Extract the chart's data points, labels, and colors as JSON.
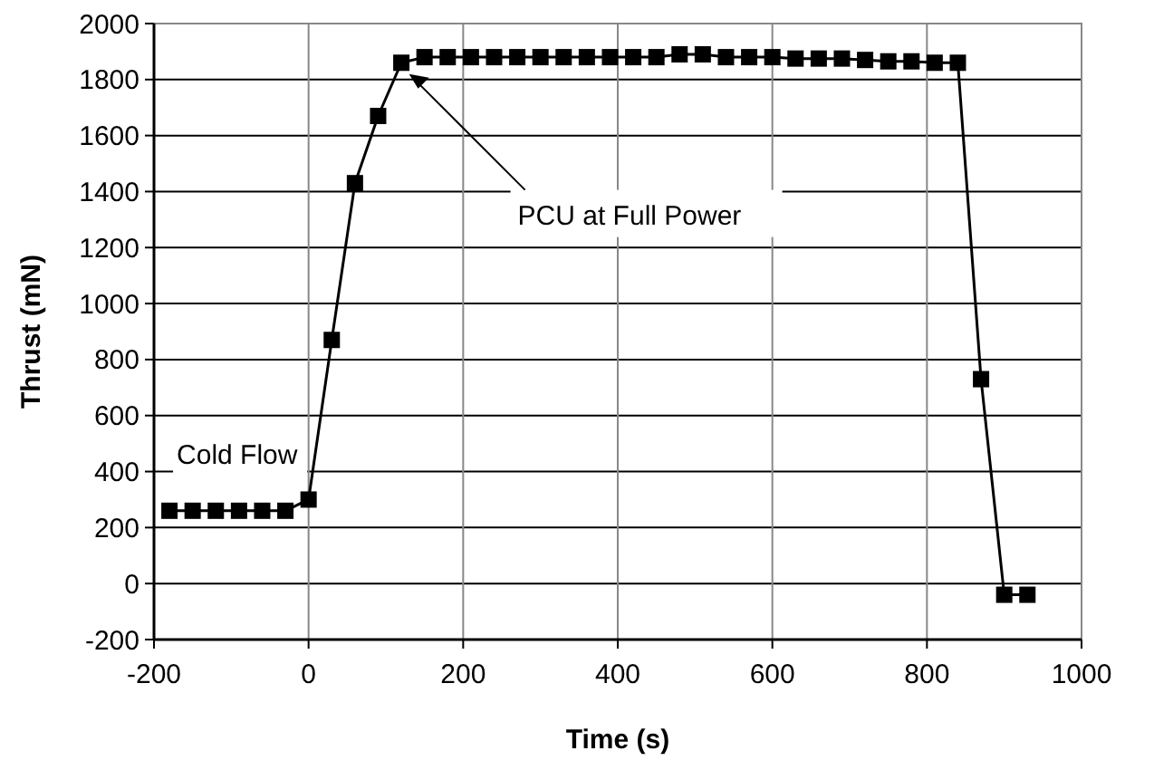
{
  "chart_data": {
    "type": "line",
    "xlabel": "Time (s)",
    "ylabel": "Thrust (mN)",
    "x": [
      -180,
      -150,
      -120,
      -90,
      -60,
      -30,
      0,
      30,
      60,
      90,
      120,
      150,
      180,
      210,
      240,
      270,
      300,
      330,
      360,
      390,
      420,
      450,
      480,
      510,
      540,
      570,
      600,
      630,
      660,
      690,
      720,
      750,
      780,
      810,
      840,
      870,
      900,
      930
    ],
    "series": [
      {
        "color": "#000000",
        "values": [
          260,
          260,
          260,
          260,
          260,
          260,
          300,
          870,
          1430,
          1670,
          1860,
          1880,
          1880,
          1880,
          1880,
          1880,
          1880,
          1880,
          1880,
          1880,
          1880,
          1880,
          1890,
          1890,
          1880,
          1880,
          1880,
          1875,
          1875,
          1875,
          1870,
          1865,
          1865,
          1860,
          1860,
          730,
          -40,
          -40
        ]
      }
    ],
    "xlim": [
      -200,
      1000
    ],
    "xticks": [
      {
        "value": -200,
        "label": "-200"
      },
      0,
      200,
      400,
      600,
      800,
      1000
    ],
    "ylim": [
      -200,
      2000
    ],
    "yticks": [
      {
        "value": -200,
        "label": "-200"
      },
      0,
      200,
      400,
      600,
      800,
      1000,
      1200,
      1400,
      1600,
      1800,
      2000
    ],
    "grid": true,
    "marker": "square",
    "line_style": "solid",
    "annotations": [
      {
        "text": "Cold Flow",
        "x": -30,
        "y": 260
      },
      {
        "text": "PCU at Full Power",
        "x": 130,
        "y": 1820
      }
    ]
  }
}
